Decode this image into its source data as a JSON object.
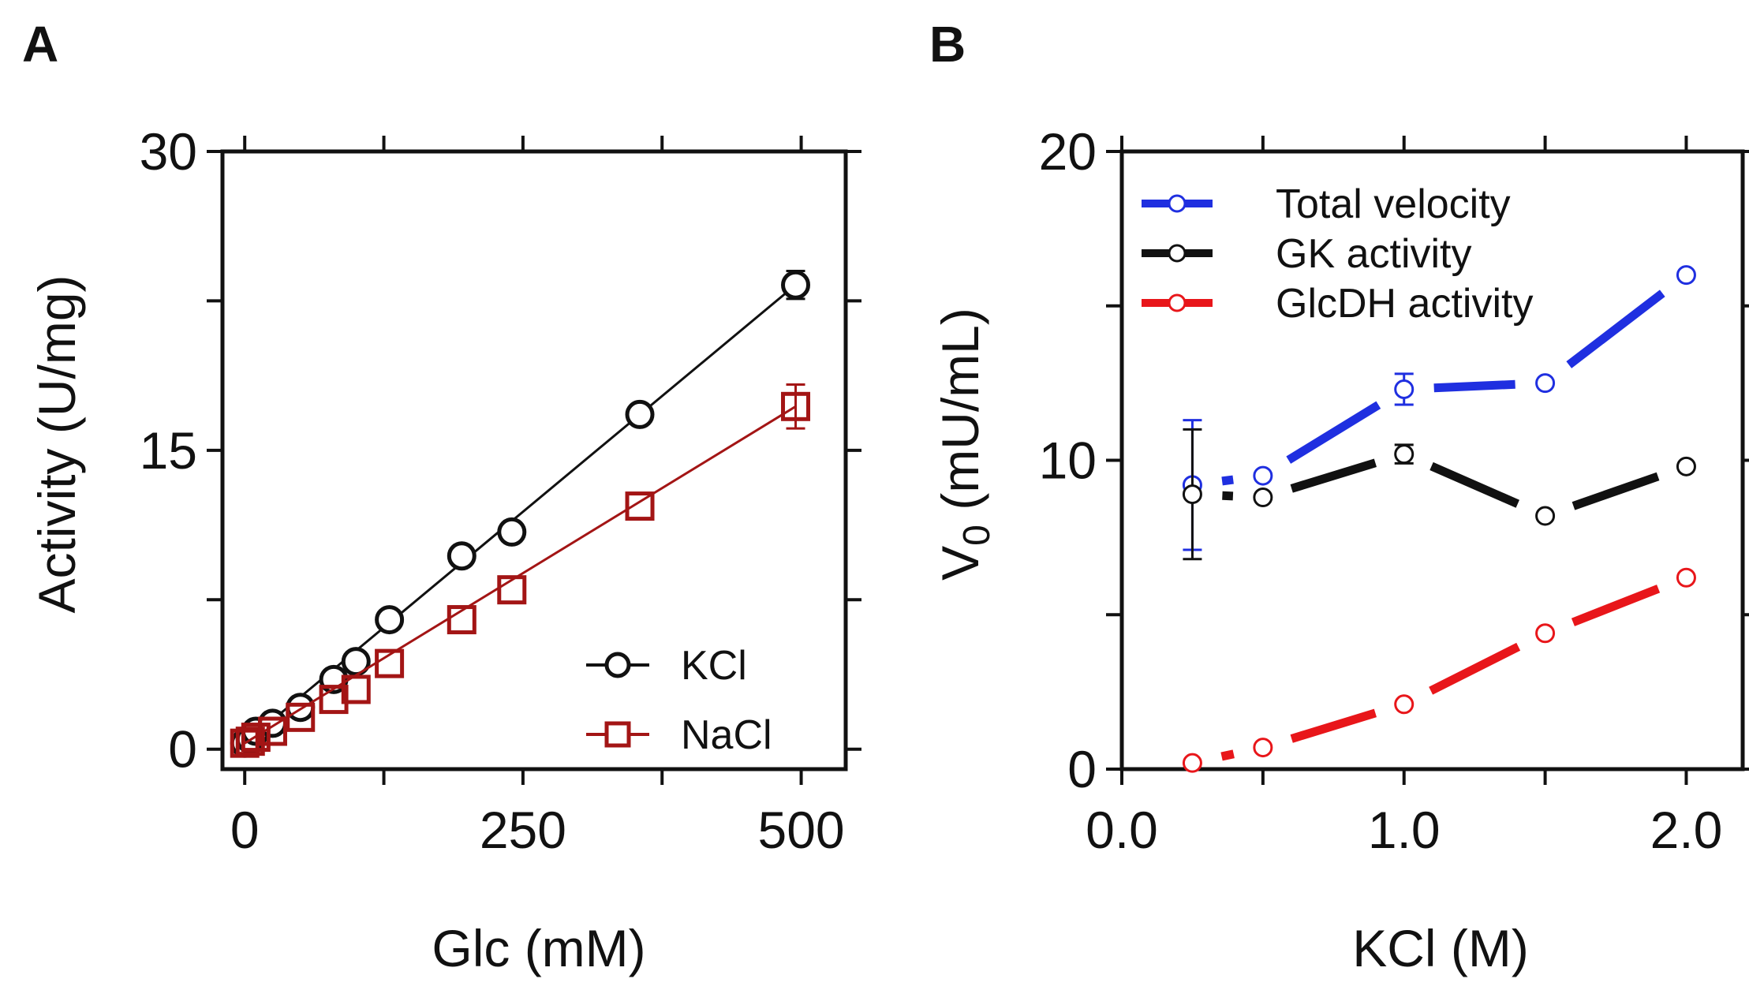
{
  "panels": [
    {
      "panel_label": "A",
      "chart_data": {
        "type": "line",
        "xlabel": "Glc (mM)",
        "ylabel": "Activity (U/mg)",
        "xlim": [
          -20,
          540
        ],
        "ylim": [
          -1,
          30
        ],
        "xticks": [
          0,
          250,
          500
        ],
        "xtick_labels": [
          "0",
          "250",
          "500"
        ],
        "yticks": [
          0,
          15,
          30
        ],
        "ytick_labels": [
          "0",
          "15",
          "30"
        ],
        "legend_position": "bottom-right",
        "series": [
          {
            "name": "KCl",
            "color": "#111111",
            "marker": "circle",
            "x": [
              0,
              5,
              10,
              25,
              50,
              80,
              100,
              130,
              195,
              240,
              355,
              495
            ],
            "y": [
              0.3,
              0.5,
              0.9,
              1.3,
              2.1,
              3.5,
              4.4,
              6.5,
              9.7,
              10.9,
              16.8,
              23.3
            ],
            "error": [
              0,
              0,
              0,
              0,
              0,
              0,
              0,
              0,
              0,
              0,
              0,
              0.7
            ]
          },
          {
            "name": "NaCl",
            "color": "#a31515",
            "marker": "square",
            "x": [
              0,
              5,
              10,
              25,
              50,
              80,
              100,
              130,
              195,
              240,
              355,
              495
            ],
            "y": [
              0.3,
              0.4,
              0.6,
              0.9,
              1.6,
              2.5,
              3.0,
              4.3,
              6.5,
              8.0,
              12.2,
              17.2
            ],
            "error": [
              0,
              0,
              0,
              0,
              0,
              0,
              0,
              0,
              0,
              0,
              0,
              1.1
            ]
          }
        ]
      }
    },
    {
      "panel_label": "B",
      "chart_data": {
        "type": "line",
        "xlabel": "KCl (M)",
        "ylabel_main": "V",
        "ylabel_sub": "0",
        "ylabel_rest": " (mU/mL)",
        "xlim": [
          0,
          2.2
        ],
        "ylim": [
          0,
          20
        ],
        "xticks": [
          0,
          1,
          2
        ],
        "xtick_labels": [
          "0.0",
          "1.0",
          "2.0"
        ],
        "yticks": [
          0,
          10,
          20
        ],
        "ytick_labels": [
          "0",
          "10",
          "20"
        ],
        "legend_position": "top-left",
        "series": [
          {
            "name": "Total velocity",
            "color": "#1f2fe0",
            "marker": "circle",
            "x": [
              0.25,
              0.5,
              1.0,
              1.5,
              2.0
            ],
            "y": [
              9.2,
              9.5,
              12.3,
              12.5,
              16.0
            ],
            "error": [
              2.1,
              0,
              0.5,
              0,
              0
            ]
          },
          {
            "name": "GK activity",
            "color": "#111111",
            "marker": "circle",
            "x": [
              0.25,
              0.5,
              1.0,
              1.5,
              2.0
            ],
            "y": [
              8.9,
              8.8,
              10.2,
              8.2,
              9.8
            ],
            "error": [
              2.1,
              0,
              0.3,
              0,
              0
            ]
          },
          {
            "name": "GlcDH activity",
            "color": "#e8161a",
            "marker": "circle",
            "x": [
              0.25,
              0.5,
              1.0,
              1.5,
              2.0
            ],
            "y": [
              0.2,
              0.7,
              2.1,
              4.4,
              6.2
            ],
            "error": [
              0,
              0,
              0,
              0,
              0
            ]
          }
        ]
      }
    }
  ]
}
